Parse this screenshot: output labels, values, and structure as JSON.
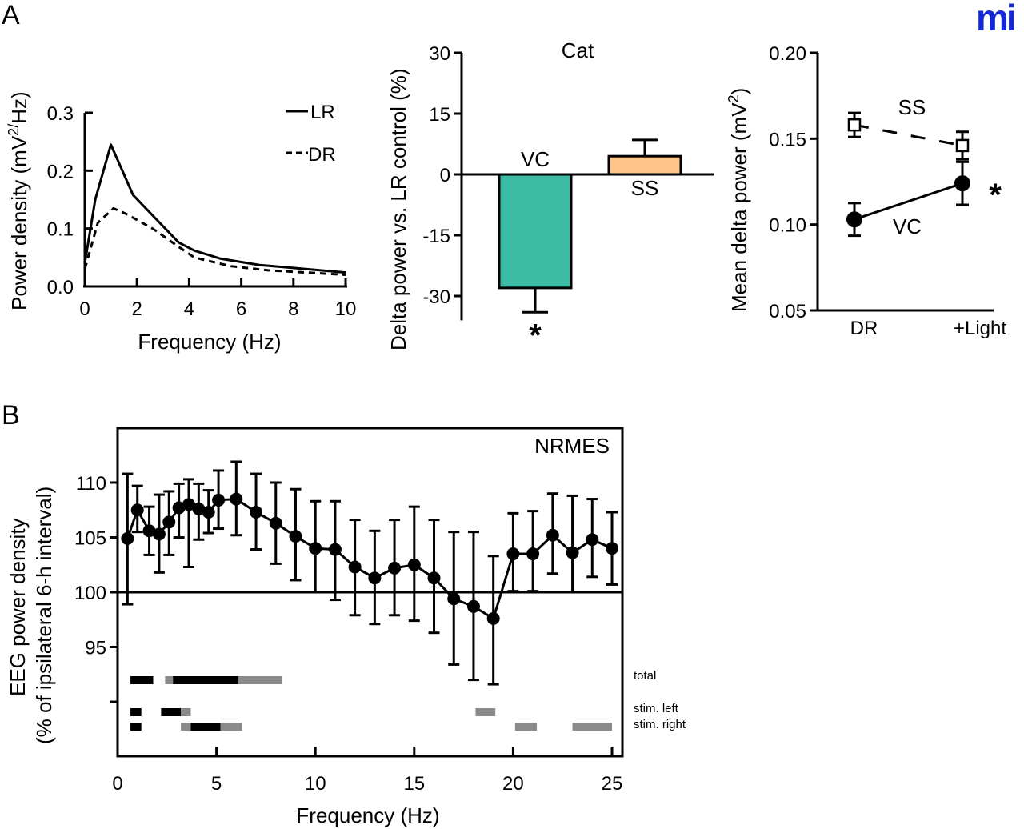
{
  "logo": {
    "text": "mi",
    "color": "#1428d8"
  },
  "panels": {
    "A": "A",
    "B": "B"
  },
  "chart_data": [
    {
      "id": "spectrum",
      "type": "line",
      "title": "",
      "xlabel": "Frequency (Hz)",
      "ylabel_main": "Power density (mV",
      "ylabel_sup": "2/",
      "ylabel_end": "Hz)",
      "xlim": [
        0,
        10
      ],
      "ylim": [
        0,
        0.3
      ],
      "xticks": [
        0,
        2,
        4,
        6,
        8,
        10
      ],
      "xtick_labels": [
        "0",
        "2",
        "4",
        "6",
        "8",
        "10"
      ],
      "yticks": [
        0,
        0.1,
        0.2,
        0.3
      ],
      "ytick_labels": [
        "0.0",
        "0.1",
        "0.2",
        "0.3"
      ],
      "legend_position": "top-right",
      "series": [
        {
          "name": "LR",
          "style": "solid",
          "x": [
            0,
            0.4,
            1.0,
            1.85,
            2.7,
            3.6,
            4.2,
            5.2,
            6.7,
            8.0,
            10
          ],
          "y": [
            0.04,
            0.15,
            0.245,
            0.158,
            0.118,
            0.076,
            0.062,
            0.048,
            0.037,
            0.032,
            0.024
          ]
        },
        {
          "name": "DR",
          "style": "dashed",
          "x": [
            0,
            0.5,
            1.1,
            1.6,
            2.6,
            3.55,
            4.2,
            5.6,
            7.0,
            10
          ],
          "y": [
            0.03,
            0.11,
            0.135,
            0.125,
            0.1,
            0.07,
            0.05,
            0.035,
            0.028,
            0.02
          ]
        }
      ]
    },
    {
      "id": "delta-bar",
      "type": "bar",
      "title": "Cat",
      "ylabel": "Delta power vs. LR control (%)",
      "ylim": [
        -36,
        30
      ],
      "yticks": [
        -30,
        -15,
        0,
        15,
        30
      ],
      "ytick_labels": [
        "-30",
        "-15",
        "0",
        "15",
        "30"
      ],
      "categories": [
        "VC",
        "SS"
      ],
      "values": [
        -28,
        4.5
      ],
      "errors": [
        6,
        4
      ],
      "colors": [
        "#3dbba5",
        "#fdc589"
      ],
      "significance": [
        "*",
        ""
      ]
    },
    {
      "id": "mean-delta",
      "type": "line",
      "title": "",
      "ylabel_main": "Mean delta power (mV",
      "ylabel_sup": "2",
      "ylabel_end": ")",
      "categories": [
        "DR",
        "+Light"
      ],
      "ylim": [
        0.05,
        0.2
      ],
      "yticks": [
        0.05,
        0.1,
        0.15,
        0.2
      ],
      "ytick_labels": [
        "0.05",
        "0.10",
        "0.15",
        "0.20"
      ],
      "series": [
        {
          "name": "SS",
          "marker": "open-square",
          "style": "dashed",
          "values": [
            0.158,
            0.146
          ],
          "errors": [
            0.007,
            0.008
          ]
        },
        {
          "name": "VC",
          "marker": "filled-circle",
          "style": "solid",
          "values": [
            0.103,
            0.124
          ],
          "errors": [
            0.0095,
            0.0125
          ]
        }
      ],
      "significance": {
        "category": "+Light",
        "series": "VC",
        "mark": "*"
      }
    },
    {
      "id": "eeg-nrmes",
      "type": "line",
      "title": "NRMES",
      "xlabel": "Frequency (Hz)",
      "ylabel_line1": "EEG power density",
      "ylabel_line2": "(% of ipsilateral 6-h interval)",
      "xlim": [
        0,
        25
      ],
      "ylim": [
        85,
        115
      ],
      "xticks": [
        0,
        5,
        10,
        15,
        20,
        25
      ],
      "xtick_labels": [
        "0",
        "5",
        "10",
        "15",
        "20",
        "25"
      ],
      "yticks": [
        90,
        95,
        100,
        105,
        110
      ],
      "ytick_labels": [
        "",
        "95",
        "100",
        "105",
        "110"
      ],
      "reference_line": 100,
      "series": [
        {
          "name": "NRMES",
          "x": [
            0.5,
            1.0,
            1.6,
            2.1,
            2.6,
            3.1,
            3.6,
            4.1,
            4.6,
            5.1,
            6.0,
            7.0,
            8.0,
            9.0,
            10.0,
            11.0,
            12.0,
            13.0,
            14.0,
            15.0,
            16.0,
            17.0,
            18.0,
            19.0,
            20.0,
            21.0,
            22.0,
            23.0,
            24.0,
            25.0
          ],
          "y": [
            104.9,
            107.5,
            105.6,
            105.3,
            106.4,
            107.7,
            108.0,
            107.6,
            107.3,
            108.4,
            108.5,
            107.3,
            106.3,
            105.1,
            104.0,
            103.9,
            102.3,
            101.3,
            102.2,
            102.5,
            101.3,
            99.4,
            98.7,
            97.6,
            103.5,
            103.5,
            105.2,
            103.6,
            104.8,
            104.0
          ],
          "err_hi": [
            110.8,
            109.7,
            107.8,
            108.9,
            109.2,
            109.9,
            110.3,
            109.9,
            109.3,
            111.1,
            111.9,
            110.8,
            110.0,
            109.4,
            108.3,
            108.3,
            106.6,
            105.6,
            106.6,
            107.8,
            106.6,
            105.5,
            105.5,
            103.3,
            107.2,
            107.4,
            109.0,
            108.8,
            108.5,
            107.3
          ],
          "err_lo": [
            98.9,
            105.5,
            103.4,
            101.8,
            103.4,
            105.0,
            102.3,
            104.8,
            105.4,
            105.8,
            105.2,
            103.9,
            102.6,
            101.1,
            100.0,
            99.3,
            97.9,
            97.1,
            97.9,
            97.4,
            96.3,
            93.4,
            92.0,
            91.6,
            100.1,
            100.1,
            101.7,
            100.0,
            101.4,
            100.7
          ]
        }
      ],
      "significance_bars": [
        {
          "label": "total",
          "segments": [
            {
              "from": 0.65,
              "to": 1.8,
              "shade": "black"
            },
            {
              "from": 2.4,
              "to": 2.8,
              "shade": "gray"
            },
            {
              "from": 2.8,
              "to": 6.1,
              "shade": "black"
            },
            {
              "from": 6.1,
              "to": 8.3,
              "shade": "gray"
            }
          ]
        },
        {
          "label": "stim. left",
          "segments": [
            {
              "from": 0.65,
              "to": 1.2,
              "shade": "black"
            },
            {
              "from": 2.2,
              "to": 3.2,
              "shade": "black"
            },
            {
              "from": 3.2,
              "to": 3.7,
              "shade": "gray"
            },
            {
              "from": 18.1,
              "to": 19.1,
              "shade": "gray"
            }
          ]
        },
        {
          "label": "stim. right",
          "segments": [
            {
              "from": 0.65,
              "to": 1.2,
              "shade": "black"
            },
            {
              "from": 3.2,
              "to": 3.7,
              "shade": "gray"
            },
            {
              "from": 3.7,
              "to": 5.2,
              "shade": "black"
            },
            {
              "from": 5.2,
              "to": 6.3,
              "shade": "gray"
            },
            {
              "from": 20.1,
              "to": 21.2,
              "shade": "gray"
            },
            {
              "from": 23.0,
              "to": 25.0,
              "shade": "gray"
            }
          ]
        }
      ]
    }
  ],
  "colors": {
    "black": "#000000",
    "gray": "#8a8a8a"
  }
}
